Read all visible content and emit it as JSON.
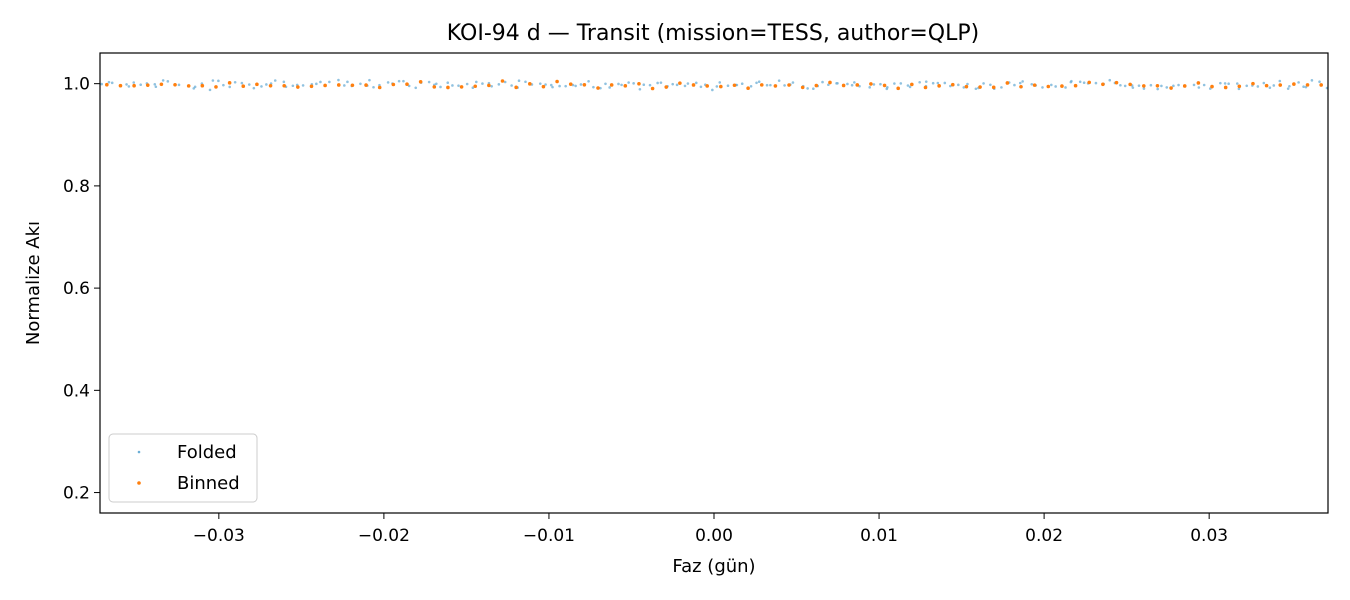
{
  "chart_data": {
    "type": "scatter",
    "title": "KOI-94 d — Transit (mission=TESS, author=QLP)",
    "xlabel": "Faz (gün)",
    "ylabel": "Normalize Akı",
    "xlim": [
      -0.0372,
      0.0372
    ],
    "ylim": [
      0.16,
      1.06
    ],
    "xticks": [
      -0.03,
      -0.02,
      -0.01,
      0.0,
      0.01,
      0.02,
      0.03
    ],
    "xtick_labels": [
      "−0.03",
      "−0.02",
      "−0.01",
      "0.00",
      "0.01",
      "0.02",
      "0.03"
    ],
    "yticks": [
      0.2,
      0.4,
      0.6,
      0.8,
      1.0
    ],
    "ytick_labels": [
      "0.2",
      "0.4",
      "0.6",
      "0.8",
      "1.0"
    ],
    "grid": false,
    "legend_position": "lower-left",
    "series": [
      {
        "name": "Folded",
        "color": "#6baed6",
        "marker": "small-dot",
        "x_range": [
          -0.0372,
          0.0372
        ],
        "n_points": 220,
        "y_mean": 0.998,
        "y_scatter": 0.004
      },
      {
        "name": "Binned",
        "color": "#ff7f0e",
        "marker": "dot",
        "x_range": [
          -0.0372,
          0.0372
        ],
        "n_points": 90,
        "y_mean": 0.997,
        "y_scatter": 0.003
      }
    ]
  }
}
